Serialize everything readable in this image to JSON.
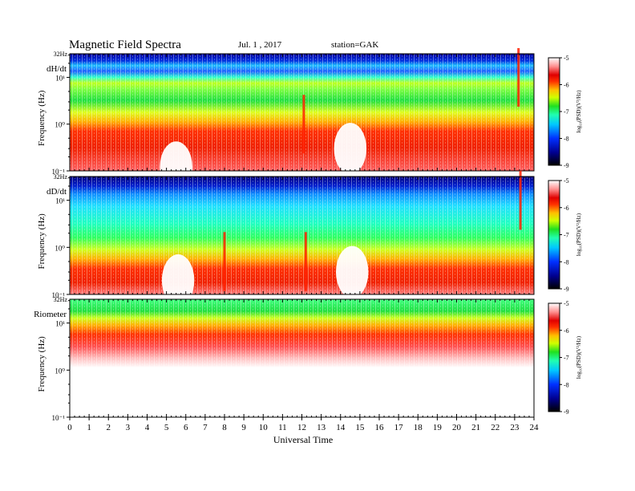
{
  "header": {
    "title": "Magnetic  Field  Spectra",
    "date": "Jul.  1  , 2017",
    "station": "station=GAK"
  },
  "chart_data": [
    {
      "type": "heatmap",
      "panel_label": "dH/dt",
      "ylabel": "Frequency (Hz)",
      "top_freq_label": "32Hz",
      "yticks": [
        "10¹",
        "10⁰",
        "10⁻¹"
      ],
      "xlim": [
        0,
        24
      ],
      "ylim": [
        0.1,
        32
      ],
      "yscale": "log",
      "colorbar": {
        "ticks": [
          "-5",
          "-6",
          "-7",
          "-8",
          "-9"
        ],
        "range": [
          -9,
          -5
        ],
        "label": "log₁₀(PSD)(V²/Hz)"
      },
      "features": [
        {
          "t": 5.5,
          "f": 0.12,
          "kind": "gap"
        },
        {
          "t": 12.1,
          "f": 1.0,
          "kind": "spike"
        },
        {
          "t": 14.5,
          "f": 0.3,
          "kind": "gap"
        },
        {
          "t": 23.2,
          "f": 10.0,
          "kind": "spike"
        }
      ]
    },
    {
      "type": "heatmap",
      "panel_label": "dD/dt",
      "ylabel": "Frequency (Hz)",
      "top_freq_label": "32Hz",
      "yticks": [
        "10¹",
        "10⁰",
        "10⁻¹"
      ],
      "xlim": [
        0,
        24
      ],
      "ylim": [
        0.1,
        32
      ],
      "yscale": "log",
      "colorbar": {
        "ticks": [
          "-5",
          "-6",
          "-7",
          "-8",
          "-9"
        ],
        "range": [
          -9,
          -5
        ],
        "label": "log₁₀(PSD)(V²/Hz)"
      },
      "features": [
        {
          "t": 5.6,
          "f": 0.2,
          "kind": "gap"
        },
        {
          "t": 8.0,
          "f": 0.5,
          "kind": "spike"
        },
        {
          "t": 12.2,
          "f": 0.5,
          "kind": "spike"
        },
        {
          "t": 14.6,
          "f": 0.3,
          "kind": "gap"
        },
        {
          "t": 23.3,
          "f": 10.0,
          "kind": "spike"
        }
      ]
    },
    {
      "type": "heatmap",
      "panel_label": "Riometer",
      "ylabel": "Frequency (Hz)",
      "top_freq_label": "32Hz",
      "yticks": [
        "10¹",
        "10⁰",
        "10⁻¹"
      ],
      "xlim": [
        0,
        24
      ],
      "ylim": [
        0.1,
        32
      ],
      "yscale": "log",
      "colorbar": {
        "ticks": [
          "-5",
          "-6",
          "-7",
          "-8",
          "-9"
        ],
        "range": [
          -9,
          -5
        ],
        "label": "log₁₀(PSD)(V²/Hz)"
      }
    }
  ],
  "xaxis": {
    "label": "Universal Time",
    "ticks": [
      "0",
      "1",
      "2",
      "3",
      "4",
      "5",
      "6",
      "7",
      "8",
      "9",
      "10",
      "11",
      "12",
      "13",
      "14",
      "15",
      "16",
      "17",
      "18",
      "19",
      "20",
      "21",
      "22",
      "23",
      "24"
    ]
  }
}
